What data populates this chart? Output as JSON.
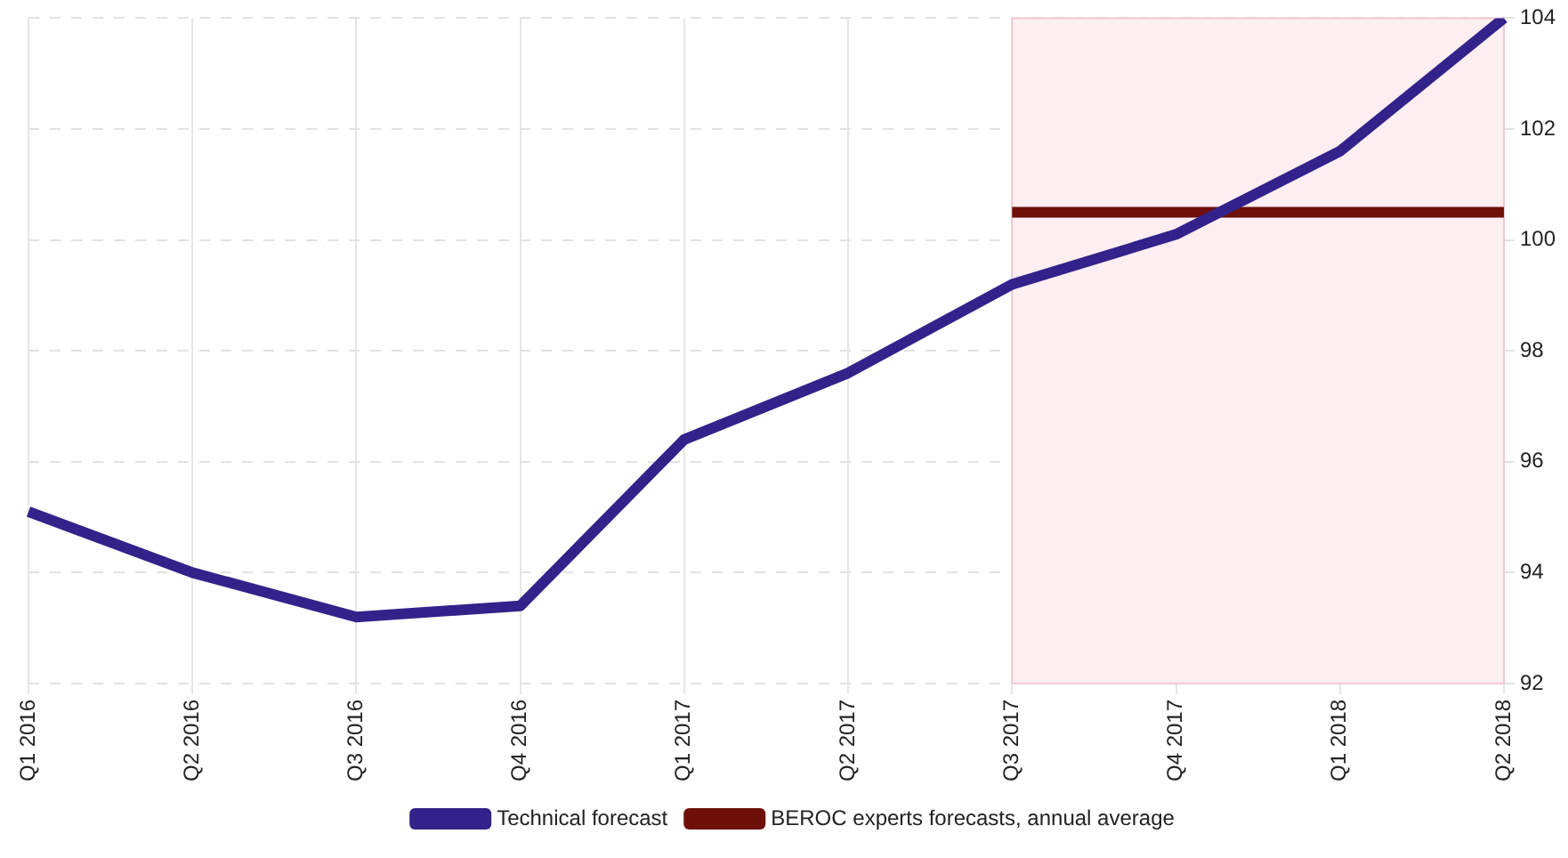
{
  "chart_data": {
    "type": "line",
    "categories": [
      "Q1 2016",
      "Q2 2016",
      "Q3 2016",
      "Q4 2016",
      "Q1 2017",
      "Q2 2017",
      "Q3 2017",
      "Q4 2017",
      "Q1 2018",
      "Q2 2018"
    ],
    "series": [
      {
        "name": "Technical forecast",
        "color": "#33228a",
        "values": [
          95.1,
          94.0,
          93.2,
          93.4,
          96.4,
          97.6,
          99.2,
          100.1,
          101.6,
          104.0
        ]
      },
      {
        "name": "BEROC experts forecasts, annual average",
        "color": "#6e0f0a",
        "values": [
          null,
          null,
          null,
          null,
          null,
          null,
          100.5,
          100.5,
          100.5,
          100.5
        ]
      }
    ],
    "ylim": [
      92,
      104
    ],
    "yticks": [
      92,
      94,
      96,
      98,
      100,
      102,
      104
    ],
    "bands": [
      {
        "axis": "x",
        "from": "Q3 2017",
        "to": "Q2 2018",
        "color": "#fdeef1"
      }
    ],
    "grid": true,
    "legend": "bottom",
    "marker": "none",
    "line_style": "solid"
  }
}
